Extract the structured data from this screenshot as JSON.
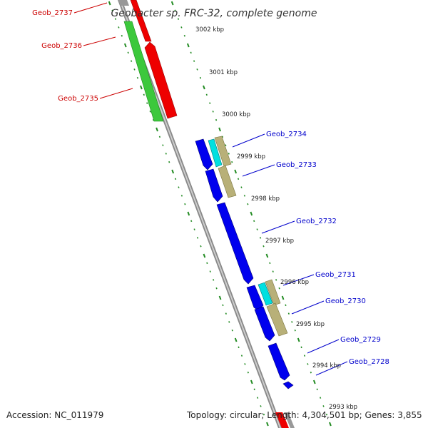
{
  "title": "Geobacter sp. FRC-32, complete genome",
  "accession_label": "Accession: NC_011979",
  "summary_label": "Topology: circular; Length: 4,304,501 bp; Genes: 3,855",
  "colors": {
    "backbone": "#8a8a8a",
    "tick": "#228b22",
    "forward_label": "#cc0000",
    "reverse_label": "#0000cc",
    "green_feature": "#3cc83c",
    "red_feature": "#ee0000",
    "blue_feature": "#0000ee",
    "cyan_feature": "#00e0e0",
    "tan_feature": "#b8b078"
  },
  "kbp_marks": [
    {
      "label": "3002 kbp"
    },
    {
      "label": "3001 kbp"
    },
    {
      "label": "3000 kbp"
    },
    {
      "label": "2999 kbp"
    },
    {
      "label": "2998 kbp"
    },
    {
      "label": "2997 kbp"
    },
    {
      "label": "2996 kbp"
    },
    {
      "label": "2995 kbp"
    },
    {
      "label": "2994 kbp"
    },
    {
      "label": "2993 kbp"
    }
  ],
  "forward_genes": [
    {
      "label": "Geob_2737",
      "color": "red"
    },
    {
      "label": "Geob_2736",
      "color": "red"
    },
    {
      "label": "Geob_2735",
      "color": "green"
    }
  ],
  "reverse_genes": [
    {
      "label": "Geob_2734"
    },
    {
      "label": "Geob_2733"
    },
    {
      "label": "Geob_2732"
    },
    {
      "label": "Geob_2731"
    },
    {
      "label": "Geob_2730"
    },
    {
      "label": "Geob_2729"
    },
    {
      "label": "Geob_2728"
    }
  ]
}
